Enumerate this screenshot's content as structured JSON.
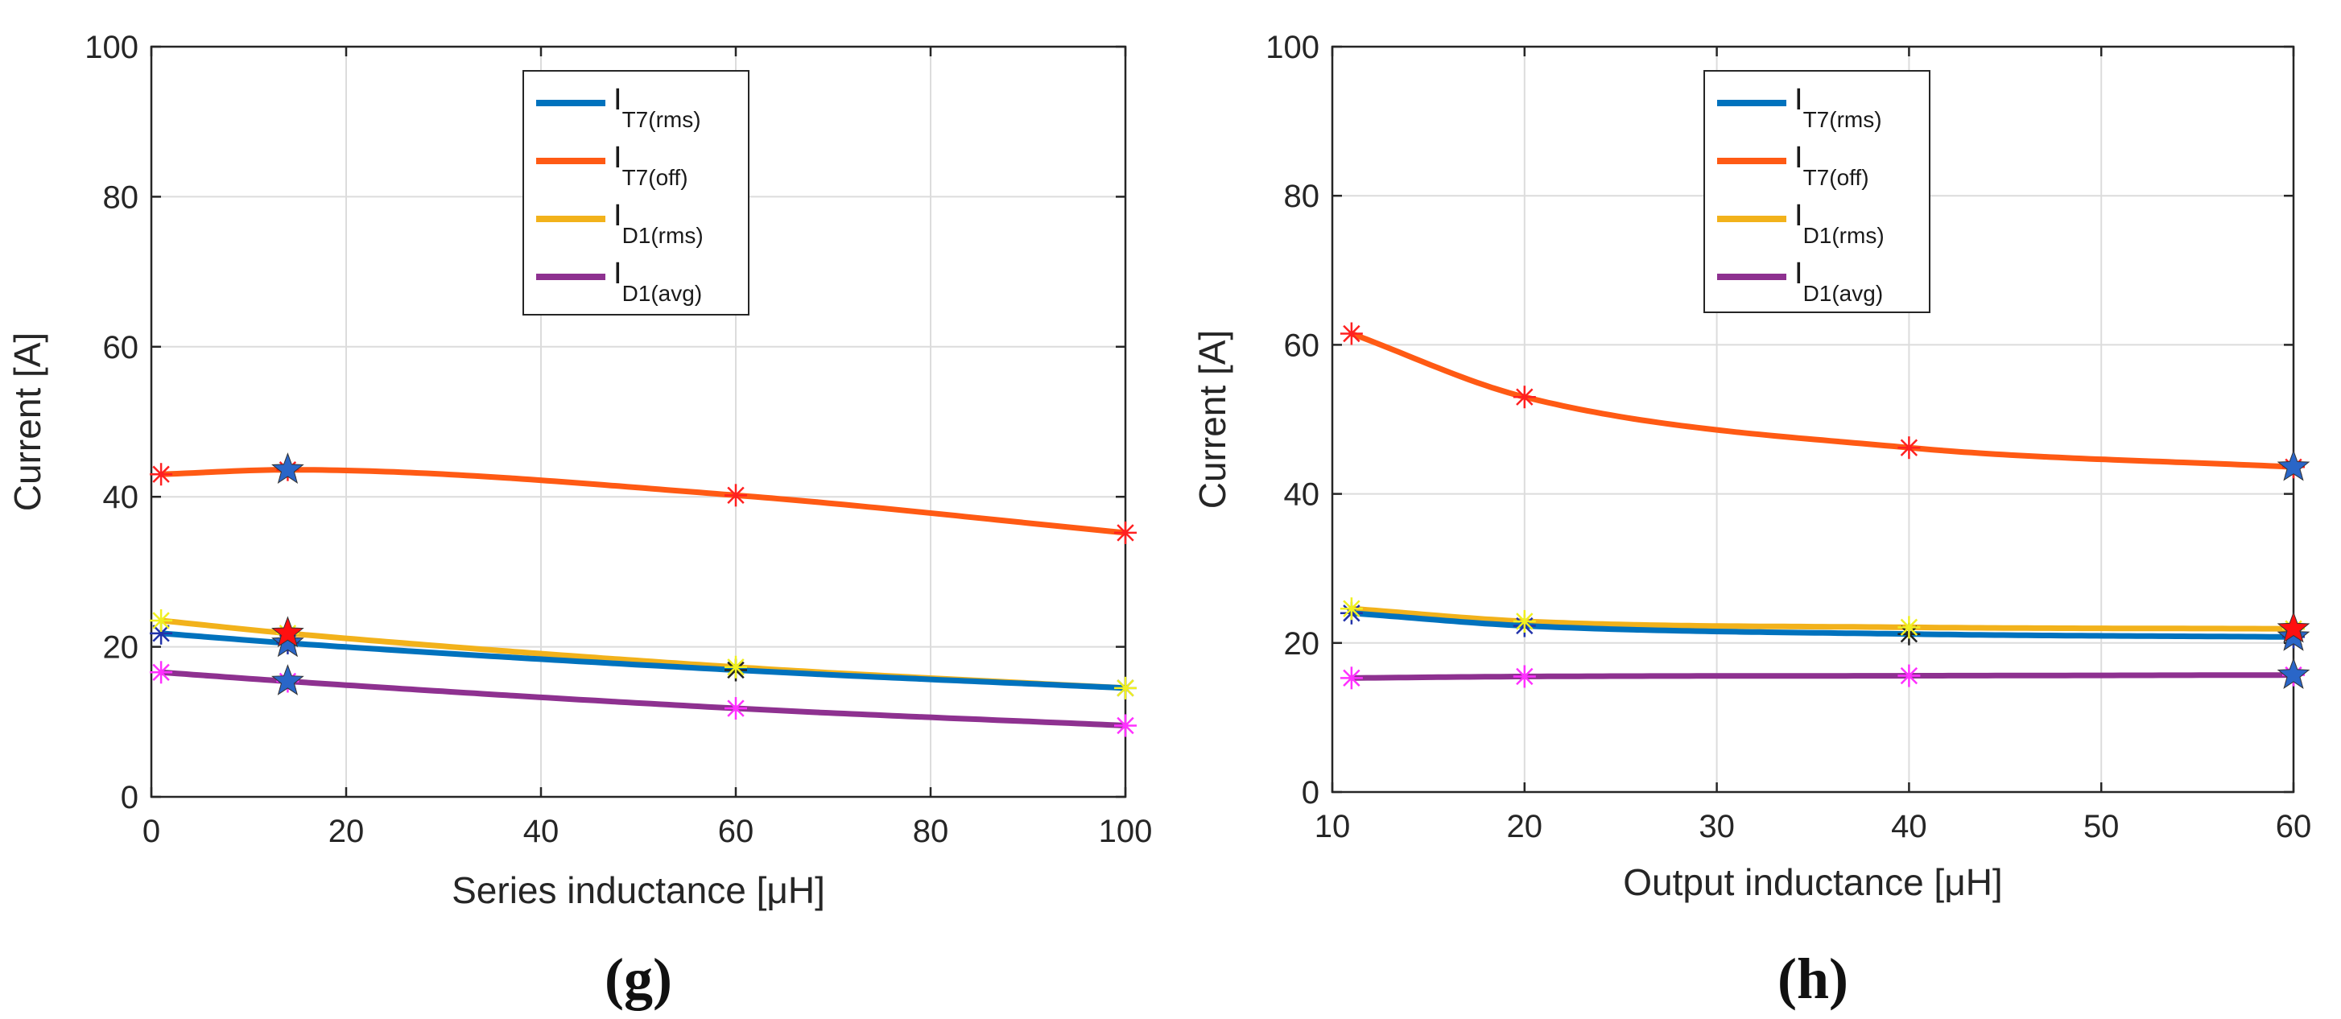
{
  "chart_data": [
    {
      "type": "line",
      "panel_label": "(g)",
      "xlabel": "Series inductance [μH]",
      "ylabel": "Current [A]",
      "xlim": [
        0,
        100
      ],
      "ylim": [
        0,
        100
      ],
      "xticks": [
        0,
        20,
        40,
        60,
        80,
        100
      ],
      "yticks": [
        0,
        20,
        40,
        60,
        80,
        100
      ],
      "grid": true,
      "legend_position": "top-center",
      "markers": [
        1,
        14,
        60,
        100
      ],
      "series": [
        {
          "name": "I",
          "sub": "T7(rms)",
          "color": "#0072BD",
          "x": [
            1,
            14,
            60,
            100
          ],
          "y": [
            21.8,
            20.5,
            16.9,
            14.5
          ]
        },
        {
          "name": "I",
          "sub": "T7(off)",
          "color": "#FF5A14",
          "x": [
            1,
            14,
            60,
            100
          ],
          "y": [
            43.0,
            43.6,
            40.2,
            35.2
          ]
        },
        {
          "name": "I",
          "sub": "D1(rms)",
          "color": "#F2B21B",
          "x": [
            1,
            14,
            60,
            100
          ],
          "y": [
            23.5,
            21.8,
            17.3,
            14.5
          ]
        },
        {
          "name": "I",
          "sub": "D1(avg)",
          "color": "#8E3190",
          "x": [
            1,
            14,
            60,
            100
          ],
          "y": [
            16.6,
            15.4,
            11.8,
            9.5
          ]
        }
      ]
    },
    {
      "type": "line",
      "panel_label": "(h)",
      "xlabel": "Output inductance [μH]",
      "ylabel": "Current [A]",
      "xlim": [
        10,
        60
      ],
      "ylim": [
        0,
        100
      ],
      "xticks": [
        10,
        20,
        30,
        40,
        50,
        60
      ],
      "yticks": [
        0,
        20,
        40,
        60,
        80,
        100
      ],
      "grid": true,
      "legend_position": "top-center",
      "markers": [
        11,
        20,
        40,
        60
      ],
      "series": [
        {
          "name": "I",
          "sub": "T7(rms)",
          "color": "#0072BD",
          "x": [
            11,
            20,
            40,
            60
          ],
          "y": [
            24.0,
            22.3,
            21.2,
            20.8
          ]
        },
        {
          "name": "I",
          "sub": "T7(off)",
          "color": "#FF5A14",
          "x": [
            11,
            20,
            40,
            60
          ],
          "y": [
            61.5,
            53.0,
            46.2,
            43.6
          ]
        },
        {
          "name": "I",
          "sub": "D1(rms)",
          "color": "#F2B21B",
          "x": [
            11,
            20,
            40,
            60
          ],
          "y": [
            24.6,
            22.9,
            22.1,
            21.9
          ]
        },
        {
          "name": "I",
          "sub": "D1(avg)",
          "color": "#8E3190",
          "x": [
            11,
            20,
            40,
            60
          ],
          "y": [
            15.3,
            15.5,
            15.6,
            15.7
          ]
        }
      ]
    }
  ]
}
